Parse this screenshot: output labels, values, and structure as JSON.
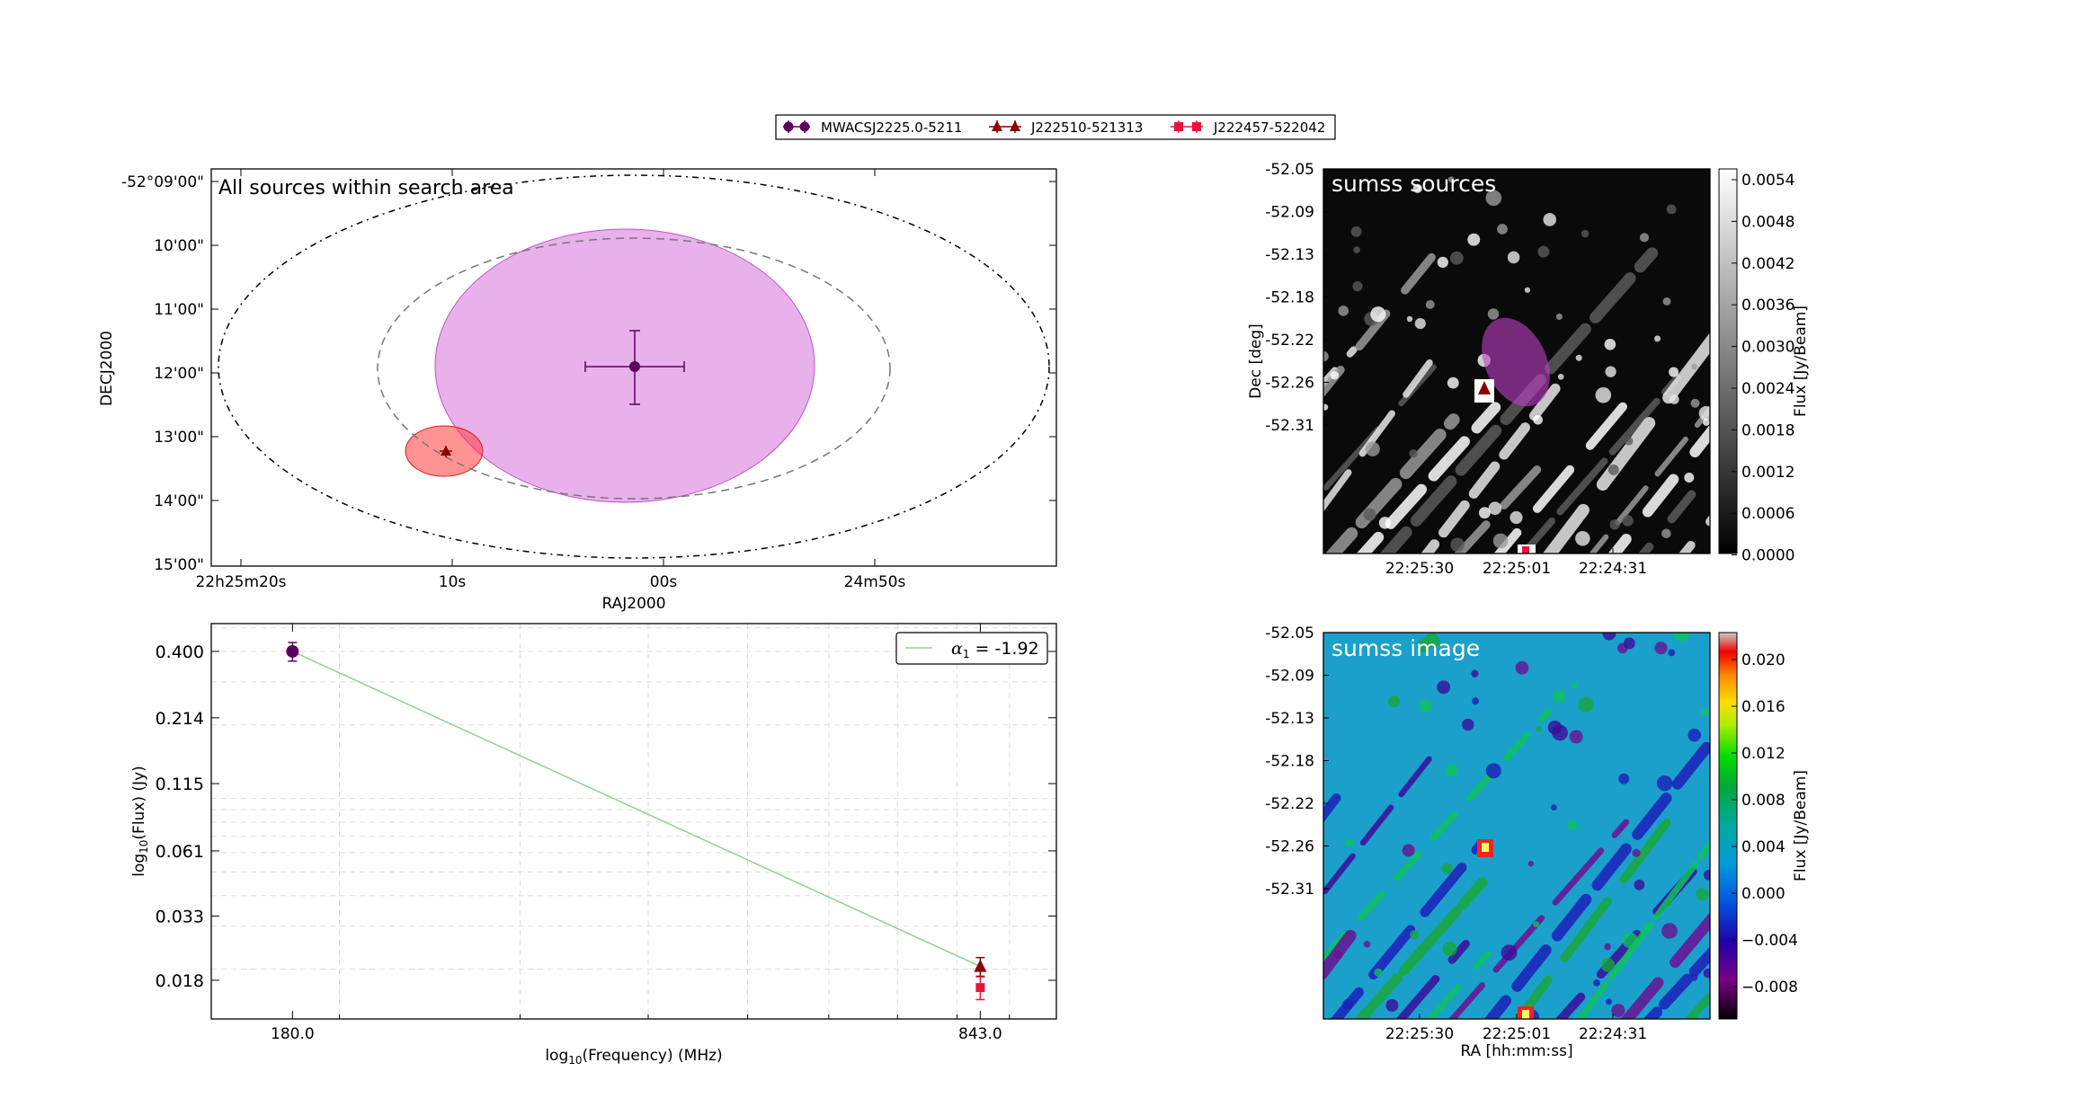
{
  "legend": {
    "entries": [
      {
        "label": "MWACSJ2225.0-5211",
        "color": "#5b005f",
        "marker": "circle"
      },
      {
        "label": "J222510-521313",
        "color": "#8b0000",
        "marker": "triangle"
      },
      {
        "label": "J222457-522042",
        "color": "#e3153a",
        "marker": "square"
      }
    ]
  },
  "chart_data": [
    {
      "type": "scatter",
      "title": "All sources within search area",
      "xlabel": "RAJ2000",
      "ylabel": "DECJ2000",
      "xticks": [
        "22h25m20s",
        "10s",
        "00s",
        "24m50s"
      ],
      "yticks": [
        "-52°09'00\"",
        "10'00\"",
        "11'00\"",
        "12'00\"",
        "13'00\"",
        "14'00\"",
        "15'00\""
      ],
      "grid": false,
      "sources": [
        {
          "name": "MWACSJ2225.0-5211",
          "color": "#5b005f",
          "shape_color": "#d87ddd",
          "ra": "22h25m01.0s",
          "dec": "-52°11'53\"",
          "ra_err_s": 4.5,
          "dec_err_arcmin": 0.55,
          "ellipse_ra_halfwidth_s": 9.0,
          "ellipse_dec_halfheight_arcmin": 1.35
        },
        {
          "name": "J222510-521313",
          "color": "#8b0000",
          "shape_color": "#ff3b3b",
          "ra": "22h25m10.4s",
          "dec": "-52°13'13\"",
          "ellipse_ra_halfwidth_s": 1.8,
          "ellipse_dec_halfheight_arcmin": 0.25
        }
      ],
      "search_ellipses": [
        {
          "style": "dashed",
          "ra_halfwidth_s": 12.0,
          "dec_halfheight_arcmin": 1.0
        },
        {
          "style": "dashdot",
          "ra_halfwidth_s": 19.5,
          "dec_halfheight_arcmin": 1.75
        }
      ]
    },
    {
      "type": "line",
      "xlabel": "log₁₀(Frequency) (MHz)",
      "ylabel": "log₁₀(Flux) (Jy)",
      "xscale": "log",
      "yscale": "log",
      "xticks": [
        "180.0",
        "843.0"
      ],
      "yticks": [
        "0.400",
        "0.214",
        "0.115",
        "0.061",
        "0.033",
        "0.018"
      ],
      "xlim": [
        150,
        1000
      ],
      "ylim": [
        0.0125,
        0.52
      ],
      "grid": true,
      "legend_label": "α₁ = -1.92",
      "legend_prefix": "α",
      "legend_sub": "1",
      "legend_value": " = -1.92",
      "fit": {
        "alpha": -1.92,
        "x": [
          180.0,
          843.0
        ],
        "y": [
          0.4,
          0.0205
        ],
        "color": "#90d090"
      },
      "points": [
        {
          "name": "MWACSJ2225.0-5211",
          "x": 180.0,
          "y": 0.4,
          "err": 0.035,
          "color": "#5b005f",
          "marker": "circle"
        },
        {
          "name": "J222510-521313",
          "x": 843.0,
          "y": 0.0205,
          "err": 0.0018,
          "color": "#8b0000",
          "marker": "triangle"
        },
        {
          "name": "J222457-522042",
          "x": 843.0,
          "y": 0.0168,
          "err": 0.0018,
          "color": "#e3153a",
          "marker": "square"
        }
      ]
    },
    {
      "type": "heatmap",
      "title": "sumss sources",
      "ylabel": "Dec [deg]",
      "xticks": [
        "22:25:30",
        "22:25:01",
        "22:24:31"
      ],
      "yticks": [
        "-52.05",
        "-52.09",
        "-52.13",
        "-52.18",
        "-52.22",
        "-52.26",
        "-52.31"
      ],
      "colormap": "gray",
      "colorbar_label": "Flux [Jy/Beam]",
      "colorbar_ticks": [
        "0.0054",
        "0.0048",
        "0.0042",
        "0.0036",
        "0.0030",
        "0.0024",
        "0.0018",
        "0.0012",
        "0.0006",
        "0.0000"
      ],
      "clim": [
        0.0,
        0.0057
      ]
    },
    {
      "type": "heatmap",
      "title": "sumss image",
      "xlabel": "RA [hh:mm:ss]",
      "yticks": [
        "-52.05",
        "-52.09",
        "-52.13",
        "-52.18",
        "-52.22",
        "-52.26",
        "-52.31"
      ],
      "xticks": [
        "22:25:30",
        "22:25:01",
        "22:24:31"
      ],
      "colormap": "spectral",
      "colorbar_label": "Flux [Jy/Beam]",
      "colorbar_ticks": [
        "0.020",
        "0.016",
        "0.012",
        "0.008",
        "0.004",
        "0.000",
        "−0.004",
        "−0.008"
      ],
      "clim": [
        -0.0102,
        0.0225
      ]
    }
  ]
}
